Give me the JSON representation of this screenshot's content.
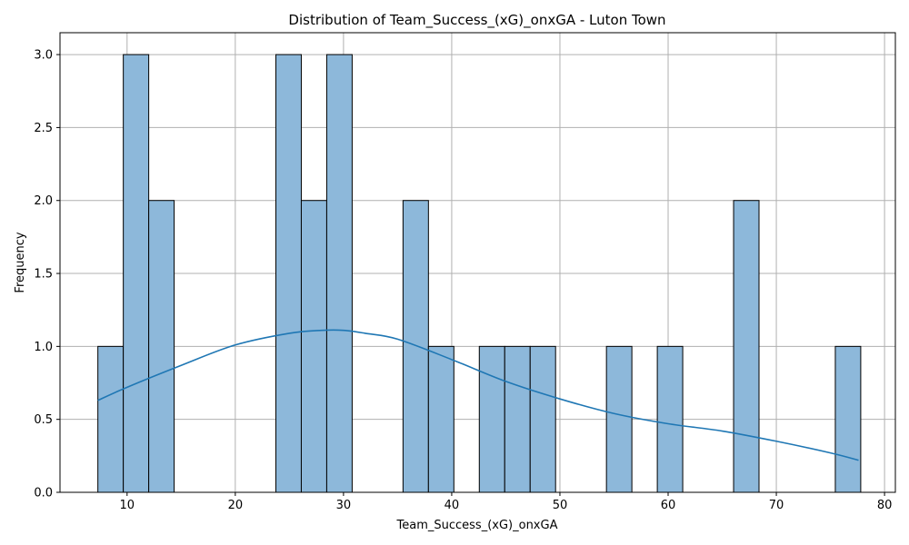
{
  "chart_data": {
    "type": "bar",
    "title": "Distribution of Team_Success_(xG)_onxGA - Luton Town",
    "xlabel": "Team_Success_(xG)_onxGA",
    "ylabel": "Frequency",
    "xlim": [
      3.8,
      81.0
    ],
    "ylim": [
      0,
      3.15
    ],
    "x_ticks": [
      10,
      20,
      30,
      40,
      50,
      60,
      70,
      80
    ],
    "y_ticks": [
      0.0,
      0.5,
      1.0,
      1.5,
      2.0,
      2.5,
      3.0
    ],
    "grid": true,
    "bar_color": "#8db8da",
    "bar_edge_color": "#000000",
    "kde_color": "#1f77b4",
    "bins": [
      {
        "x0": 7.3,
        "x1": 9.65,
        "count": 1
      },
      {
        "x0": 9.65,
        "x1": 12.0,
        "count": 3
      },
      {
        "x0": 12.0,
        "x1": 14.35,
        "count": 2
      },
      {
        "x0": 14.35,
        "x1": 16.7,
        "count": 0
      },
      {
        "x0": 16.7,
        "x1": 19.05,
        "count": 0
      },
      {
        "x0": 19.05,
        "x1": 21.4,
        "count": 0
      },
      {
        "x0": 21.4,
        "x1": 23.75,
        "count": 0
      },
      {
        "x0": 23.75,
        "x1": 26.1,
        "count": 3
      },
      {
        "x0": 26.1,
        "x1": 28.45,
        "count": 2
      },
      {
        "x0": 28.45,
        "x1": 30.8,
        "count": 3
      },
      {
        "x0": 30.8,
        "x1": 33.15,
        "count": 0
      },
      {
        "x0": 33.15,
        "x1": 35.5,
        "count": 0
      },
      {
        "x0": 35.5,
        "x1": 37.85,
        "count": 2
      },
      {
        "x0": 37.85,
        "x1": 40.2,
        "count": 1
      },
      {
        "x0": 40.2,
        "x1": 42.55,
        "count": 0
      },
      {
        "x0": 42.55,
        "x1": 44.9,
        "count": 1
      },
      {
        "x0": 44.9,
        "x1": 47.25,
        "count": 1
      },
      {
        "x0": 47.25,
        "x1": 49.6,
        "count": 1
      },
      {
        "x0": 49.6,
        "x1": 51.95,
        "count": 0
      },
      {
        "x0": 51.95,
        "x1": 54.3,
        "count": 0
      },
      {
        "x0": 54.3,
        "x1": 56.65,
        "count": 1
      },
      {
        "x0": 56.65,
        "x1": 59.0,
        "count": 0
      },
      {
        "x0": 59.0,
        "x1": 61.35,
        "count": 1
      },
      {
        "x0": 61.35,
        "x1": 63.7,
        "count": 0
      },
      {
        "x0": 63.7,
        "x1": 66.05,
        "count": 0
      },
      {
        "x0": 66.05,
        "x1": 68.4,
        "count": 2
      },
      {
        "x0": 68.4,
        "x1": 70.75,
        "count": 0
      },
      {
        "x0": 70.75,
        "x1": 73.1,
        "count": 0
      },
      {
        "x0": 73.1,
        "x1": 75.45,
        "count": 0
      },
      {
        "x0": 75.45,
        "x1": 77.8,
        "count": 1
      }
    ],
    "kde": {
      "x": [
        7.3,
        10,
        15,
        20,
        25,
        28,
        30,
        32,
        35,
        40,
        45,
        50,
        55,
        60,
        65,
        70,
        75,
        77.6
      ],
      "y": [
        0.63,
        0.72,
        0.87,
        1.01,
        1.09,
        1.11,
        1.11,
        1.09,
        1.05,
        0.91,
        0.76,
        0.64,
        0.54,
        0.47,
        0.42,
        0.35,
        0.27,
        0.22
      ]
    }
  }
}
